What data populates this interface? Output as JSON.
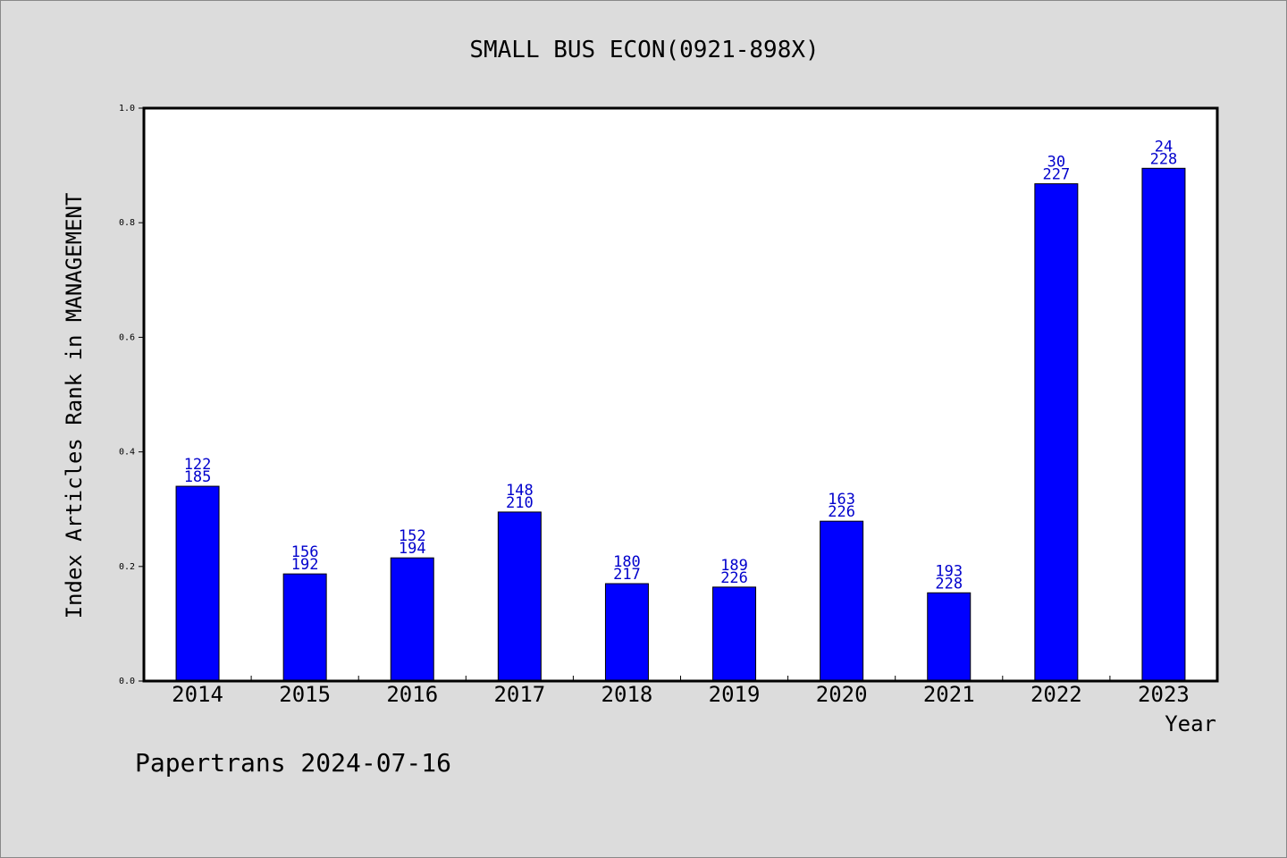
{
  "chart_data": {
    "type": "bar",
    "title": "SMALL BUS ECON(0921-898X)",
    "xlabel": "Year",
    "ylabel": "Index Articles Rank in MANAGEMENT",
    "ylim": [
      0,
      1.0
    ],
    "yticks": [
      "0.0",
      "0.2",
      "0.4",
      "0.6",
      "0.8",
      "1.0"
    ],
    "ytick_values": [
      0.0,
      0.2,
      0.4,
      0.6,
      0.8,
      1.0
    ],
    "categories": [
      "2014",
      "2015",
      "2016",
      "2017",
      "2018",
      "2019",
      "2020",
      "2021",
      "2022",
      "2023"
    ],
    "values": [
      0.34,
      0.187,
      0.215,
      0.295,
      0.17,
      0.164,
      0.279,
      0.154,
      0.868,
      0.895
    ],
    "ranks": [
      "122",
      "156",
      "152",
      "148",
      "180",
      "189",
      "163",
      "193",
      "30",
      "24"
    ],
    "totals": [
      "185",
      "192",
      "194",
      "210",
      "217",
      "226",
      "226",
      "228",
      "227",
      "228"
    ],
    "grid": false,
    "bar_color": "#0000ff",
    "label_color": "#0000cc",
    "footer": "Papertrans 2024-07-16"
  }
}
